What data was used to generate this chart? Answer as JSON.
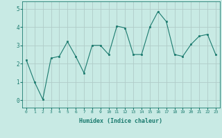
{
  "x": [
    0,
    1,
    2,
    3,
    4,
    5,
    6,
    7,
    8,
    9,
    10,
    11,
    12,
    13,
    14,
    15,
    16,
    17,
    18,
    19,
    20,
    21,
    22,
    23
  ],
  "y": [
    2.2,
    1.0,
    0.05,
    2.3,
    2.4,
    3.2,
    2.4,
    1.5,
    3.0,
    3.0,
    2.5,
    4.05,
    3.95,
    2.5,
    2.5,
    4.0,
    4.85,
    4.3,
    2.5,
    2.4,
    3.05,
    3.5,
    3.6,
    2.5
  ],
  "line_color": "#1a7a6e",
  "marker_color": "#1a7a6e",
  "bg_color": "#c8eae4",
  "grid_color": "#b0ccc8",
  "xlabel": "Humidex (Indice chaleur)",
  "xlim": [
    -0.5,
    23.5
  ],
  "ylim": [
    -0.4,
    5.4
  ],
  "yticks": [
    0,
    1,
    2,
    3,
    4,
    5
  ],
  "xticks": [
    0,
    1,
    2,
    3,
    4,
    5,
    6,
    7,
    8,
    9,
    10,
    11,
    12,
    13,
    14,
    15,
    16,
    17,
    18,
    19,
    20,
    21,
    22,
    23
  ]
}
